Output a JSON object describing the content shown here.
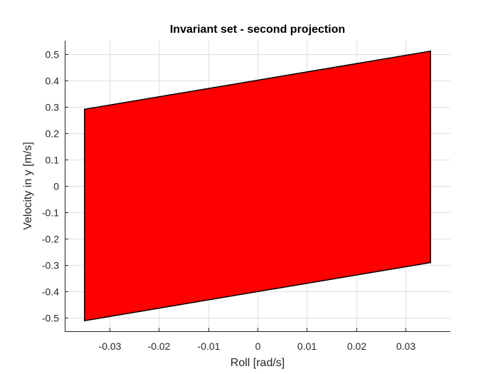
{
  "chart_data": {
    "type": "area",
    "title": "Invariant set - second projection",
    "xlabel": "Roll [rad/s]",
    "ylabel": "Velocity in y [m/s]",
    "xlim": [
      -0.039,
      0.039
    ],
    "ylim": [
      -0.55,
      0.55
    ],
    "xticks": [
      -0.03,
      -0.02,
      -0.01,
      0,
      0.01,
      0.02,
      0.03
    ],
    "xtick_labels": [
      "-0.03",
      "-0.02",
      "-0.01",
      "0",
      "0.01",
      "0.02",
      "0.03"
    ],
    "yticks": [
      0.5,
      0.4,
      0.3,
      0.2,
      0.1,
      0,
      -0.1,
      -0.2,
      -0.3,
      -0.4,
      -0.5
    ],
    "ytick_labels": [
      "0.5",
      "0.4",
      "0.3",
      "0.2",
      "0.1",
      "0",
      "-0.1",
      "-0.2",
      "-0.3",
      "-0.4",
      "-0.5"
    ],
    "grid": true,
    "polygon": {
      "fill": "#ff0000",
      "edge": "#000000",
      "x": [
        -0.035,
        0.035,
        0.035,
        -0.035
      ],
      "y": [
        0.29,
        0.51,
        -0.29,
        -0.51
      ]
    }
  }
}
